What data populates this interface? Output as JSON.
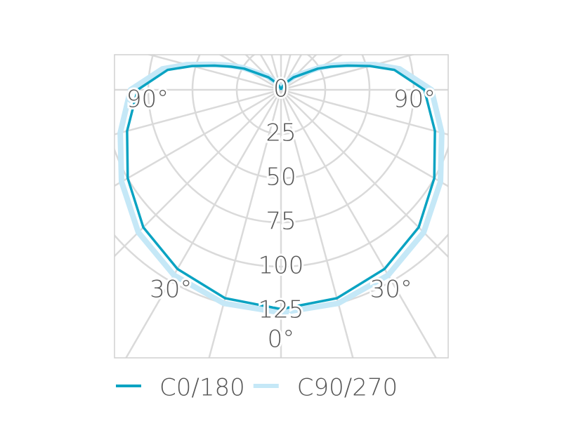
{
  "chart_data": {
    "type": "polar",
    "angles": [
      0,
      15,
      30,
      45,
      60,
      75,
      90,
      100,
      105,
      110,
      115,
      120,
      135,
      150,
      165,
      180
    ],
    "series": [
      {
        "name": "C0/180",
        "color": "#0aa3c2",
        "values": [
          124,
          122,
          117,
          110,
          100,
          90,
          81,
          65,
          52,
          40,
          31,
          24,
          10,
          4,
          1,
          0
        ]
      },
      {
        "name": "C90/270",
        "color": "#c5e8f7",
        "values": [
          126,
          125,
          121,
          114,
          104,
          94,
          85,
          68,
          55,
          42,
          33,
          25,
          11,
          4,
          1,
          0
        ]
      }
    ],
    "rlim": [
      0,
      175
    ],
    "rticks": [
      0,
      25,
      50,
      75,
      100,
      125
    ],
    "angle_ticks": [
      {
        "value": -90,
        "label": "90°"
      },
      {
        "value": 90,
        "label": "90°"
      },
      {
        "value": -30,
        "label": "30°"
      },
      {
        "value": 30,
        "label": "30°"
      },
      {
        "value": 0,
        "label": "0°"
      }
    ],
    "grid": true
  }
}
